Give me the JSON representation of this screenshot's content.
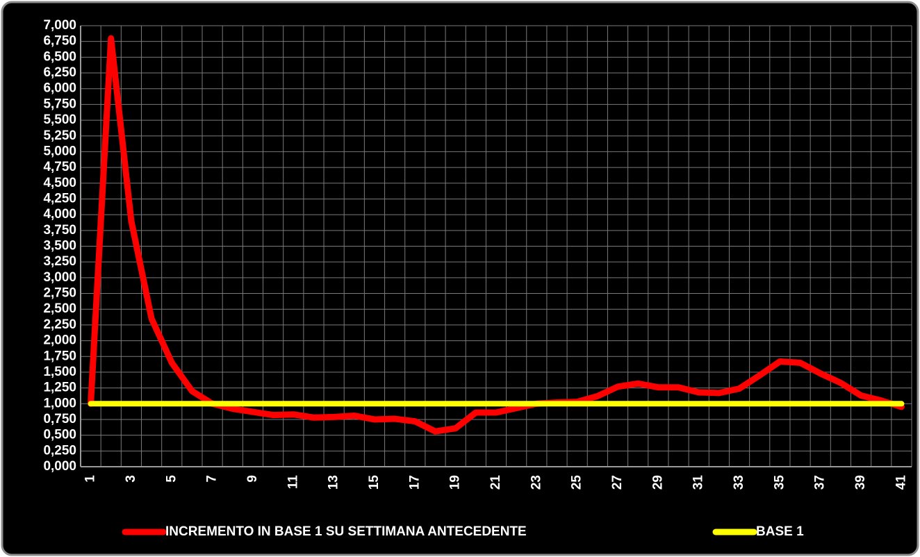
{
  "chart_data": {
    "type": "line",
    "categories": [
      "1",
      null,
      "3",
      null,
      "5",
      null,
      "7",
      null,
      "9",
      null,
      "11",
      null,
      "13",
      null,
      "15",
      null,
      "17",
      null,
      "19",
      null,
      "21",
      null,
      "23",
      null,
      "25",
      null,
      "27",
      null,
      "29",
      null,
      "31",
      null,
      "33",
      null,
      "35",
      null,
      "37",
      null,
      "39",
      null,
      "41"
    ],
    "series": [
      {
        "name": "INCREMENTO IN BASE 1 SU SETTIMANA ANTECEDENTE",
        "color": "#ff0000",
        "values": [
          1.0,
          6.8,
          3.9,
          2.35,
          1.65,
          1.2,
          1.0,
          0.92,
          0.87,
          0.82,
          0.83,
          0.78,
          0.79,
          0.81,
          0.75,
          0.76,
          0.72,
          0.56,
          0.61,
          0.86,
          0.86,
          0.93,
          1.0,
          1.02,
          1.03,
          1.12,
          1.27,
          1.32,
          1.26,
          1.26,
          1.18,
          1.17,
          1.24,
          1.45,
          1.67,
          1.65,
          1.48,
          1.33,
          1.13,
          1.05,
          0.95
        ]
      },
      {
        "name": "BASE 1",
        "color": "#ffff00",
        "values": [
          1,
          1,
          1,
          1,
          1,
          1,
          1,
          1,
          1,
          1,
          1,
          1,
          1,
          1,
          1,
          1,
          1,
          1,
          1,
          1,
          1,
          1,
          1,
          1,
          1,
          1,
          1,
          1,
          1,
          1,
          1,
          1,
          1,
          1,
          1,
          1,
          1,
          1,
          1,
          1,
          1
        ]
      }
    ],
    "ylim": [
      0,
      7
    ],
    "yticks": [
      {
        "value": 0,
        "label": "0,000"
      },
      {
        "value": 0.25,
        "label": "0,250"
      },
      {
        "value": 0.5,
        "label": "0,500"
      },
      {
        "value": 0.75,
        "label": "0,750"
      },
      {
        "value": 1,
        "label": "1,000"
      },
      {
        "value": 1.25,
        "label": "1,250"
      },
      {
        "value": 1.5,
        "label": "1,500"
      },
      {
        "value": 1.75,
        "label": "1,750"
      },
      {
        "value": 2,
        "label": "2,000"
      },
      {
        "value": 2.25,
        "label": "2,250"
      },
      {
        "value": 2.5,
        "label": "2,500"
      },
      {
        "value": 2.75,
        "label": "2,750"
      },
      {
        "value": 3,
        "label": "3,000"
      },
      {
        "value": 3.25,
        "label": "3,250"
      },
      {
        "value": 3.5,
        "label": "3,500"
      },
      {
        "value": 3.75,
        "label": "3,750"
      },
      {
        "value": 4,
        "label": "4,000"
      },
      {
        "value": 4.25,
        "label": "4,250"
      },
      {
        "value": 4.5,
        "label": "4,500"
      },
      {
        "value": 4.75,
        "label": "4,750"
      },
      {
        "value": 5,
        "label": "5,000"
      },
      {
        "value": 5.25,
        "label": "5,250"
      },
      {
        "value": 5.5,
        "label": "5,500"
      },
      {
        "value": 5.75,
        "label": "5,750"
      },
      {
        "value": 6,
        "label": "6,000"
      },
      {
        "value": 6.25,
        "label": "6,250"
      },
      {
        "value": 6.5,
        "label": "6,500"
      },
      {
        "value": 6.75,
        "label": "6,750"
      },
      {
        "value": 7,
        "label": "7,000"
      }
    ],
    "grid": true,
    "legend": "bottom"
  }
}
